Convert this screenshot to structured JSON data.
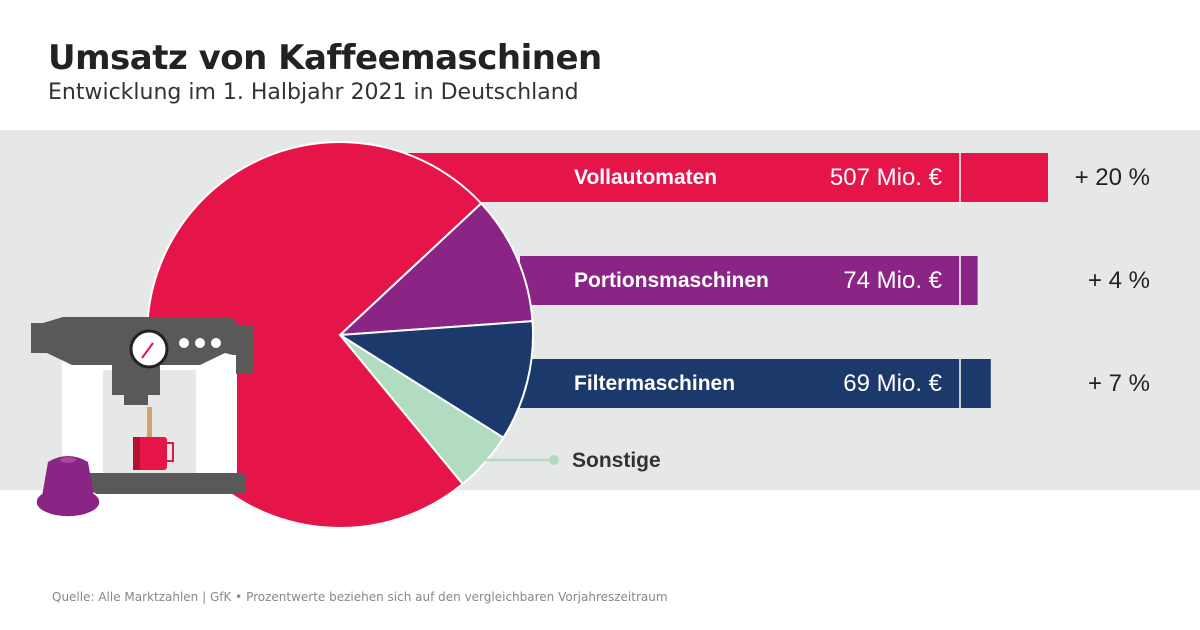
{
  "title": "Umsatz von Kaffeemaschinen",
  "subtitle": "Entwicklung im 1. Halbjahr 2021 in Deutschland",
  "footer": "Quelle: Alle Marktzahlen | GfK • Prozentwerte beziehen sich auf den vergleichbaren Vorjahreszeitraum",
  "chart_data": {
    "type": "pie",
    "title": "Umsatz von Kaffeemaschinen",
    "unit": "Mio. €",
    "slices": [
      {
        "name": "Vollautomaten",
        "value": 507,
        "value_label": "507 Mio. €",
        "change": "+ 20 %",
        "change_pct": 20,
        "color": "#e5154a"
      },
      {
        "name": "Portionsmaschinen",
        "value": 74,
        "value_label": "74 Mio. €",
        "change": "+ 4 %",
        "change_pct": 4,
        "color": "#8b2585"
      },
      {
        "name": "Filtermaschinen",
        "value": 69,
        "value_label": "69 Mio. €",
        "change": "+ 7 %",
        "change_pct": 7,
        "color": "#1b3a6b"
      },
      {
        "name": "Sonstige",
        "value": 35,
        "color": "#b1dcc1"
      }
    ]
  }
}
